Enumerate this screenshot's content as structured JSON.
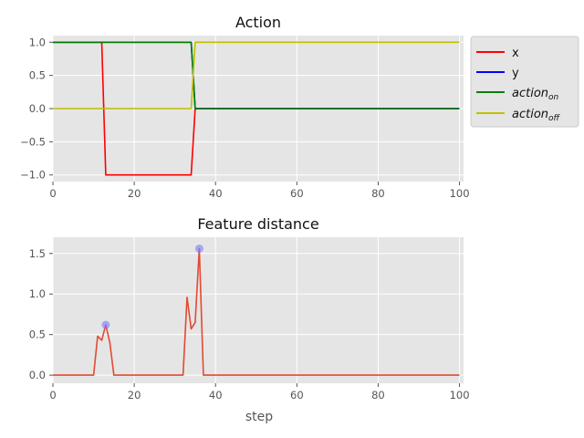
{
  "chart_data": [
    {
      "type": "line",
      "title": "Action",
      "xlabel": "",
      "ylabel": "",
      "xlim": [
        0,
        101
      ],
      "ylim": [
        -1.1,
        1.1
      ],
      "xticks": [
        0,
        20,
        40,
        60,
        80,
        100
      ],
      "yticks": [
        -1.0,
        -0.5,
        0.0,
        0.5,
        1.0
      ],
      "ytick_labels": [
        "−1.0",
        "−0.5",
        "0.0",
        "0.5",
        "1.0"
      ],
      "xtick_labels": [
        "0",
        "20",
        "40",
        "60",
        "80",
        "100"
      ],
      "grid": true,
      "legend_position": "outside-right",
      "series": [
        {
          "name": "x",
          "color": "#ff0000",
          "x": [
            0,
            12,
            13,
            34,
            35,
            100
          ],
          "y": [
            1,
            1,
            -1,
            -1,
            0,
            0
          ]
        },
        {
          "name": "y",
          "color": "#0000ff",
          "x": [
            0,
            34,
            35,
            100
          ],
          "y": [
            1,
            1,
            0,
            0
          ]
        },
        {
          "name": "action",
          "name_sub": "on",
          "color": "#008000",
          "x": [
            0,
            34,
            35,
            100
          ],
          "y": [
            1,
            1,
            0,
            0
          ]
        },
        {
          "name": "action",
          "name_sub": "off",
          "color": "#bfbf00",
          "x": [
            0,
            34,
            35,
            100
          ],
          "y": [
            0,
            0,
            1,
            1
          ]
        }
      ]
    },
    {
      "type": "line",
      "title": "Feature distance",
      "xlabel": "step",
      "ylabel": "",
      "xlim": [
        0,
        101
      ],
      "ylim": [
        -0.1,
        1.7
      ],
      "xticks": [
        0,
        20,
        40,
        60,
        80,
        100
      ],
      "yticks": [
        0.0,
        0.5,
        1.0,
        1.5
      ],
      "ytick_labels": [
        "0.0",
        "0.5",
        "1.0",
        "1.5"
      ],
      "xtick_labels": [
        "0",
        "20",
        "40",
        "60",
        "80",
        "100"
      ],
      "grid": true,
      "series": [
        {
          "color": "#e24a33",
          "x": [
            0,
            10,
            11,
            12,
            13,
            14,
            15,
            32,
            33,
            34,
            35,
            36,
            37,
            100
          ],
          "y": [
            0,
            0,
            0.48,
            0.43,
            0.62,
            0.4,
            0,
            0,
            0.96,
            0.57,
            0.65,
            1.56,
            0,
            0
          ]
        }
      ],
      "markers": {
        "color": "#7b7bff",
        "x": [
          13,
          36
        ],
        "y": [
          0.62,
          1.56
        ]
      }
    }
  ]
}
